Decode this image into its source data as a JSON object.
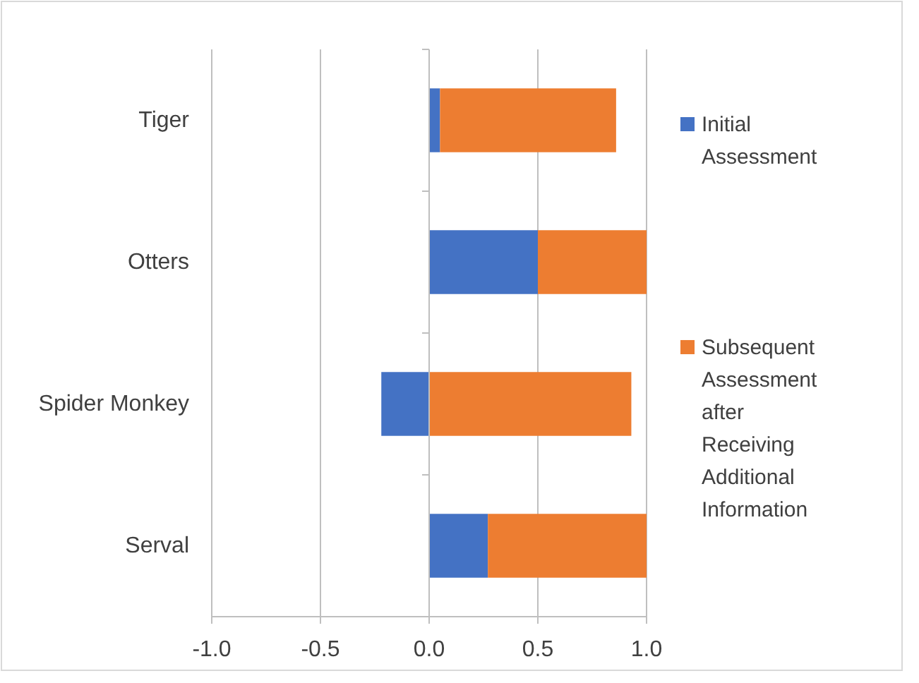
{
  "chart_data": {
    "type": "bar",
    "orientation": "horizontal",
    "stacked": true,
    "categories": [
      "Tiger",
      "Otters",
      "Spider Monkey",
      "Serval"
    ],
    "series": [
      {
        "name": "Initial Assessment",
        "color": "#4472c4",
        "values": [
          0.05,
          0.5,
          -0.22,
          0.27
        ]
      },
      {
        "name": "Subsequent Assessment after Receiving Additional Information",
        "color": "#ed7d31",
        "values": [
          0.81,
          0.5,
          0.93,
          0.73
        ]
      }
    ],
    "xlim": [
      -1,
      1
    ],
    "xticks": [
      {
        "value": -1,
        "label": "-1.0"
      },
      {
        "value": -0.5,
        "label": "-0.5"
      },
      {
        "value": 0,
        "label": "0.0"
      },
      {
        "value": 0.5,
        "label": "0.5"
      },
      {
        "value": 1,
        "label": "1.0"
      }
    ],
    "grid": "x",
    "legend": "right"
  }
}
